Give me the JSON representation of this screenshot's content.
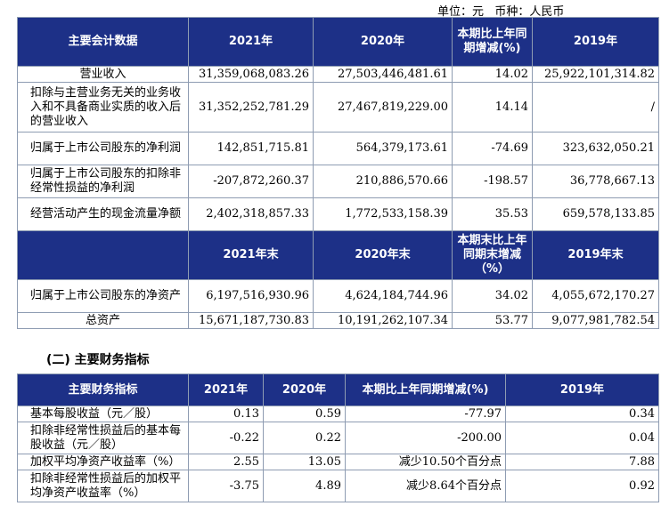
{
  "unit_line": "单位：元   币种：人民币",
  "table1": {
    "headers": [
      "主要会计数据",
      "2021年",
      "2020年",
      "本期比上年同期增减(%)",
      "2019年"
    ],
    "rows": [
      [
        "营业收入",
        "31,359,068,083.26",
        "27,503,446,481.61",
        "14.02",
        "25,922,101,314.82"
      ],
      [
        "扣除与主营业务无关的业务收入和不具备商业实质的收入后的营业收入",
        "31,352,252,781.29",
        "27,467,819,229.00",
        "14.14",
        "/"
      ],
      [
        "归属于上市公司股东的净利润",
        "142,851,715.81",
        "564,379,173.61",
        "-74.69",
        "323,632,050.21"
      ],
      [
        "归属于上市公司股东的扣除非经常性损益的净利润",
        "-207,872,260.37",
        "210,886,570.66",
        "-198.57",
        "36,778,667.13"
      ],
      [
        "经营活动产生的现金流量净额",
        "2,402,318,857.33",
        "1,772,533,158.39",
        "35.53",
        "659,578,133.85"
      ]
    ],
    "headers2": [
      "",
      "2021年末",
      "2020年末",
      "本期末比上年同期末增减（%）",
      "2019年末"
    ],
    "rows2": [
      [
        "归属于上市公司股东的净资产",
        "6,197,516,930.96",
        "4,624,184,744.96",
        "34.02",
        "4,055,672,170.27"
      ],
      [
        "总资产",
        "15,671,187,730.83",
        "10,191,262,107.34",
        "53.77",
        "9,077,981,782.54"
      ]
    ]
  },
  "section_title": "(二) 主要财务指标",
  "table2": {
    "headers": [
      "主要财务指标",
      "2021年",
      "2020年",
      "本期比上年同期增减(%)",
      "2019年"
    ],
    "rows": [
      [
        "基本每股收益（元／股）",
        "0.13",
        "0.59",
        "-77.97",
        "0.34"
      ],
      [
        "扣除非经常性损益后的基本每股收益（元／股）",
        "-0.22",
        "0.22",
        "-200.00",
        "0.04"
      ],
      [
        "加权平均净资产收益率（%）",
        "2.55",
        "13.05",
        "减少10.50个百分点",
        "7.88"
      ],
      [
        "扣除非经常性损益后的加权平均净资产收益率（%）",
        "-3.75",
        "4.89",
        "减少8.64个百分点",
        "0.92"
      ]
    ]
  }
}
